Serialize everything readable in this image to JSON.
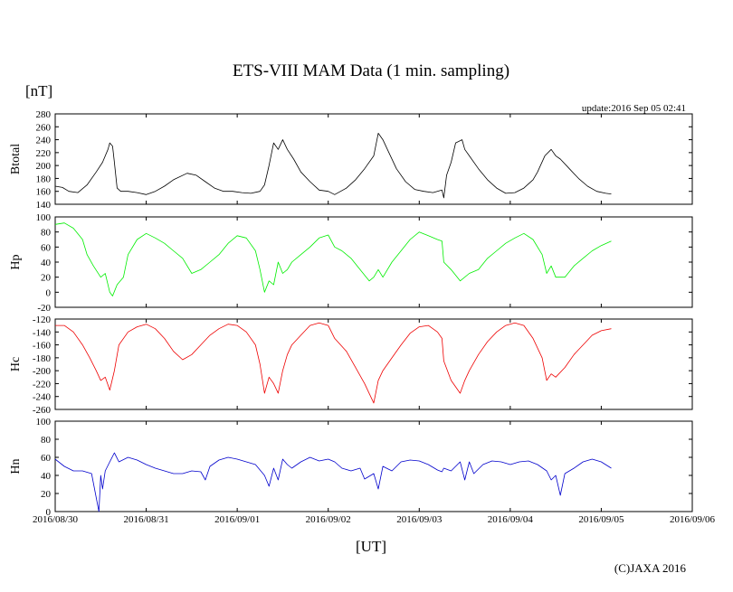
{
  "chart_data": {
    "type": "line",
    "title": "ETS-VIII MAM Data (1 min. sampling)",
    "unit_label": "[nT]",
    "update_text": "update:2016 Sep 05 02:41",
    "xlabel": "[UT]",
    "copyright": "(C)JAXA 2016",
    "x_ticks": [
      "2016/08/30",
      "2016/08/31",
      "2016/09/01",
      "2016/09/02",
      "2016/09/03",
      "2016/09/04",
      "2016/09/05",
      "2016/09/06"
    ],
    "xlim_days": [
      0,
      7
    ],
    "panels": [
      {
        "id": "btotal",
        "ylabel": "Btotal",
        "color": "#000000",
        "ylim": [
          140,
          280
        ],
        "yticks": [
          140,
          160,
          180,
          200,
          220,
          240,
          260,
          280
        ],
        "x": [
          0.0,
          0.08,
          0.15,
          0.25,
          0.35,
          0.45,
          0.52,
          0.58,
          0.6,
          0.63,
          0.65,
          0.68,
          0.72,
          0.8,
          0.9,
          1.0,
          1.1,
          1.2,
          1.3,
          1.45,
          1.55,
          1.65,
          1.75,
          1.85,
          1.95,
          2.05,
          2.15,
          2.25,
          2.3,
          2.35,
          2.4,
          2.45,
          2.5,
          2.55,
          2.62,
          2.7,
          2.8,
          2.9,
          3.0,
          3.07,
          3.2,
          3.3,
          3.4,
          3.5,
          3.55,
          3.6,
          3.65,
          3.75,
          3.85,
          3.95,
          4.05,
          4.15,
          4.25,
          4.27,
          4.3,
          4.35,
          4.4,
          4.47,
          4.5,
          4.55,
          4.65,
          4.75,
          4.85,
          4.95,
          5.05,
          5.15,
          5.25,
          5.3,
          5.38,
          5.45,
          5.5,
          5.55,
          5.65,
          5.75,
          5.85,
          5.95,
          6.05,
          6.11
        ],
        "values": [
          168,
          166,
          160,
          158,
          170,
          190,
          205,
          225,
          235,
          230,
          205,
          165,
          160,
          160,
          158,
          155,
          160,
          168,
          178,
          188,
          185,
          175,
          165,
          160,
          160,
          158,
          157,
          160,
          170,
          200,
          235,
          225,
          240,
          225,
          210,
          190,
          175,
          162,
          160,
          155,
          165,
          178,
          195,
          215,
          250,
          240,
          225,
          195,
          175,
          163,
          160,
          158,
          162,
          150,
          185,
          205,
          235,
          240,
          225,
          215,
          195,
          178,
          165,
          157,
          158,
          165,
          178,
          190,
          215,
          225,
          215,
          210,
          195,
          180,
          168,
          160,
          157,
          156
        ]
      },
      {
        "id": "hp",
        "ylabel": "Hp",
        "color": "#00ee00",
        "ylim": [
          -20,
          100
        ],
        "yticks": [
          -20,
          0,
          20,
          40,
          60,
          80,
          100
        ],
        "x": [
          0.0,
          0.1,
          0.2,
          0.3,
          0.35,
          0.42,
          0.5,
          0.55,
          0.6,
          0.63,
          0.68,
          0.75,
          0.8,
          0.9,
          1.0,
          1.1,
          1.2,
          1.3,
          1.4,
          1.5,
          1.6,
          1.7,
          1.8,
          1.9,
          2.0,
          2.1,
          2.2,
          2.25,
          2.3,
          2.35,
          2.4,
          2.45,
          2.5,
          2.55,
          2.6,
          2.7,
          2.8,
          2.9,
          3.0,
          3.07,
          3.15,
          3.25,
          3.35,
          3.45,
          3.5,
          3.55,
          3.6,
          3.7,
          3.8,
          3.9,
          4.0,
          4.1,
          4.2,
          4.25,
          4.27,
          4.35,
          4.45,
          4.55,
          4.65,
          4.75,
          4.85,
          4.95,
          5.05,
          5.15,
          5.25,
          5.35,
          5.4,
          5.45,
          5.5,
          5.6,
          5.7,
          5.8,
          5.9,
          6.0,
          6.11
        ],
        "values": [
          90,
          92,
          85,
          70,
          50,
          35,
          20,
          25,
          0,
          -5,
          10,
          20,
          50,
          70,
          78,
          72,
          65,
          55,
          45,
          25,
          30,
          40,
          50,
          65,
          75,
          72,
          55,
          30,
          0,
          15,
          10,
          40,
          25,
          30,
          40,
          50,
          60,
          72,
          76,
          60,
          55,
          45,
          30,
          15,
          20,
          30,
          20,
          40,
          55,
          70,
          80,
          75,
          70,
          68,
          40,
          30,
          15,
          25,
          30,
          45,
          55,
          65,
          72,
          78,
          70,
          50,
          25,
          35,
          20,
          20,
          35,
          45,
          55,
          62,
          68
        ]
      },
      {
        "id": "hc",
        "ylabel": "Hc",
        "color": "#ee0000",
        "ylim": [
          -260,
          -120
        ],
        "yticks": [
          -260,
          -240,
          -220,
          -200,
          -180,
          -160,
          -140,
          -120
        ],
        "x": [
          0.0,
          0.1,
          0.2,
          0.3,
          0.38,
          0.45,
          0.5,
          0.55,
          0.6,
          0.65,
          0.7,
          0.8,
          0.9,
          1.0,
          1.1,
          1.2,
          1.3,
          1.4,
          1.5,
          1.6,
          1.7,
          1.8,
          1.9,
          2.0,
          2.1,
          2.2,
          2.25,
          2.3,
          2.35,
          2.4,
          2.45,
          2.5,
          2.55,
          2.6,
          2.7,
          2.8,
          2.9,
          3.0,
          3.07,
          3.2,
          3.3,
          3.4,
          3.5,
          3.55,
          3.6,
          3.7,
          3.8,
          3.9,
          4.0,
          4.1,
          4.2,
          4.25,
          4.27,
          4.35,
          4.45,
          4.5,
          4.55,
          4.65,
          4.75,
          4.85,
          4.95,
          5.05,
          5.15,
          5.25,
          5.35,
          5.4,
          5.45,
          5.5,
          5.6,
          5.7,
          5.8,
          5.9,
          6.0,
          6.11
        ],
        "values": [
          -130,
          -130,
          -140,
          -160,
          -180,
          -200,
          -215,
          -210,
          -230,
          -200,
          -160,
          -140,
          -132,
          -128,
          -135,
          -150,
          -170,
          -183,
          -175,
          -160,
          -145,
          -135,
          -128,
          -130,
          -140,
          -160,
          -190,
          -235,
          -210,
          -220,
          -235,
          -200,
          -175,
          -160,
          -145,
          -130,
          -126,
          -130,
          -150,
          -170,
          -195,
          -220,
          -250,
          -215,
          -200,
          -180,
          -160,
          -142,
          -132,
          -130,
          -140,
          -150,
          -185,
          -215,
          -235,
          -215,
          -200,
          -175,
          -155,
          -140,
          -130,
          -126,
          -130,
          -150,
          -180,
          -215,
          -205,
          -210,
          -195,
          -175,
          -160,
          -145,
          -138,
          -135
        ]
      },
      {
        "id": "hn",
        "ylabel": "Hn",
        "color": "#0000cc",
        "ylim": [
          0,
          100
        ],
        "yticks": [
          0,
          20,
          40,
          60,
          80,
          100
        ],
        "x": [
          0.0,
          0.1,
          0.2,
          0.3,
          0.4,
          0.48,
          0.5,
          0.52,
          0.55,
          0.6,
          0.65,
          0.7,
          0.8,
          0.9,
          1.0,
          1.1,
          1.2,
          1.3,
          1.4,
          1.5,
          1.6,
          1.65,
          1.7,
          1.8,
          1.9,
          2.0,
          2.1,
          2.2,
          2.3,
          2.35,
          2.4,
          2.45,
          2.5,
          2.55,
          2.6,
          2.7,
          2.8,
          2.9,
          3.0,
          3.07,
          3.15,
          3.25,
          3.35,
          3.4,
          3.5,
          3.55,
          3.6,
          3.7,
          3.8,
          3.9,
          4.0,
          4.1,
          4.2,
          4.25,
          4.27,
          4.35,
          4.45,
          4.5,
          4.55,
          4.6,
          4.7,
          4.8,
          4.9,
          5.0,
          5.1,
          5.2,
          5.3,
          5.4,
          5.45,
          5.5,
          5.55,
          5.6,
          5.7,
          5.8,
          5.9,
          6.0,
          6.11
        ],
        "values": [
          58,
          50,
          45,
          45,
          42,
          0,
          40,
          25,
          45,
          55,
          65,
          55,
          60,
          57,
          52,
          48,
          45,
          42,
          42,
          45,
          44,
          35,
          50,
          57,
          60,
          58,
          55,
          52,
          40,
          28,
          48,
          35,
          58,
          52,
          48,
          55,
          60,
          56,
          58,
          55,
          48,
          45,
          48,
          36,
          42,
          25,
          50,
          45,
          55,
          57,
          56,
          52,
          46,
          44,
          48,
          45,
          55,
          35,
          55,
          42,
          52,
          56,
          55,
          52,
          55,
          56,
          52,
          45,
          35,
          40,
          18,
          42,
          48,
          55,
          58,
          55,
          48
        ]
      }
    ]
  }
}
